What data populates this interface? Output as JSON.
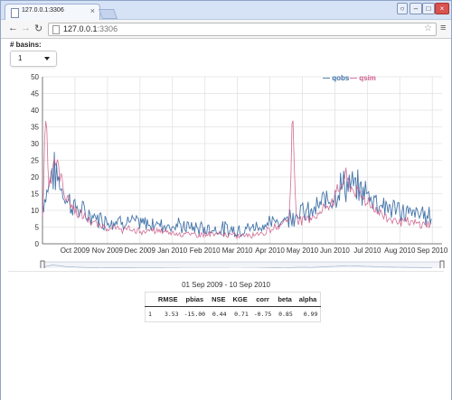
{
  "browser": {
    "tab_title": "127.0.0.1:3306",
    "url_host": "127.0.0.1",
    "url_port": ":3306"
  },
  "controls": {
    "basins_label": "# basins:",
    "basins_value": "1"
  },
  "chart_data": {
    "type": "line",
    "title": "",
    "xlabel": "",
    "ylabel": "",
    "ylim": [
      0,
      50
    ],
    "yticks": [
      0,
      5,
      10,
      15,
      20,
      25,
      30,
      35,
      40,
      45,
      50
    ],
    "xticks": [
      "Oct 2009",
      "Nov 2009",
      "Dec 2009",
      "Jan 2010",
      "Feb 2010",
      "Mar 2010",
      "Apr 2010",
      "May 2010",
      "Jun 2010",
      "Jul 2010",
      "Aug 2010",
      "Sep 2010"
    ],
    "legend_placement": "top-right",
    "grid": true,
    "x_range": [
      "2009-09-01",
      "2010-09-10"
    ],
    "series": [
      {
        "name": "qobs",
        "color": "#3a6ea5",
        "x_month_index": [
          0,
          0.15,
          0.3,
          0.5,
          0.7,
          1.0,
          1.3,
          1.6,
          2.0,
          2.5,
          3.0,
          3.5,
          4.0,
          4.5,
          5.0,
          5.5,
          6.0,
          6.5,
          7.0,
          7.3,
          7.6,
          7.9,
          8.2,
          8.5,
          8.8,
          9.0,
          9.3,
          9.6,
          10.0,
          10.3,
          10.6,
          11.0,
          11.3,
          11.6,
          12.0
        ],
        "values": [
          12,
          16,
          22,
          19,
          14,
          11,
          9,
          8,
          7,
          7,
          6,
          6,
          5.5,
          5,
          4.5,
          4.5,
          4,
          5,
          6,
          7,
          8,
          10,
          9,
          11,
          14,
          15,
          18,
          17,
          15,
          13,
          11,
          10,
          9,
          9,
          8
        ]
      },
      {
        "name": "qsim",
        "color": "#cc5e8a",
        "x_month_index": [
          0,
          0.1,
          0.2,
          0.35,
          0.5,
          0.7,
          1.0,
          1.3,
          1.6,
          2.0,
          2.5,
          3.0,
          3.5,
          4.0,
          4.5,
          5.0,
          5.5,
          6.0,
          6.5,
          7.0,
          7.3,
          7.6,
          7.7,
          7.8,
          7.9,
          8.2,
          8.5,
          8.8,
          9.0,
          9.3,
          9.6,
          10.0,
          10.3,
          10.6,
          11.0,
          11.3,
          11.6,
          12.0
        ],
        "values": [
          8,
          40,
          18,
          26,
          22,
          15,
          10,
          8,
          6,
          5,
          4.5,
          4,
          4,
          3.5,
          3,
          3,
          3,
          2.5,
          3,
          4,
          6,
          8,
          39,
          10,
          7,
          8,
          9,
          12,
          14,
          20,
          16,
          13,
          10,
          8,
          7,
          6.5,
          6,
          6
        ]
      }
    ]
  },
  "metrics": {
    "period": "01 Sep 2009 - 10 Sep 2010",
    "headers": [
      "",
      "RMSE",
      "pbias",
      "NSE",
      "KGE",
      "corr",
      "beta",
      "alpha"
    ],
    "row": [
      "1",
      "3.53",
      "-15.00",
      "0.44",
      "0.71",
      "-0.75",
      "0.85",
      "0.99"
    ]
  }
}
